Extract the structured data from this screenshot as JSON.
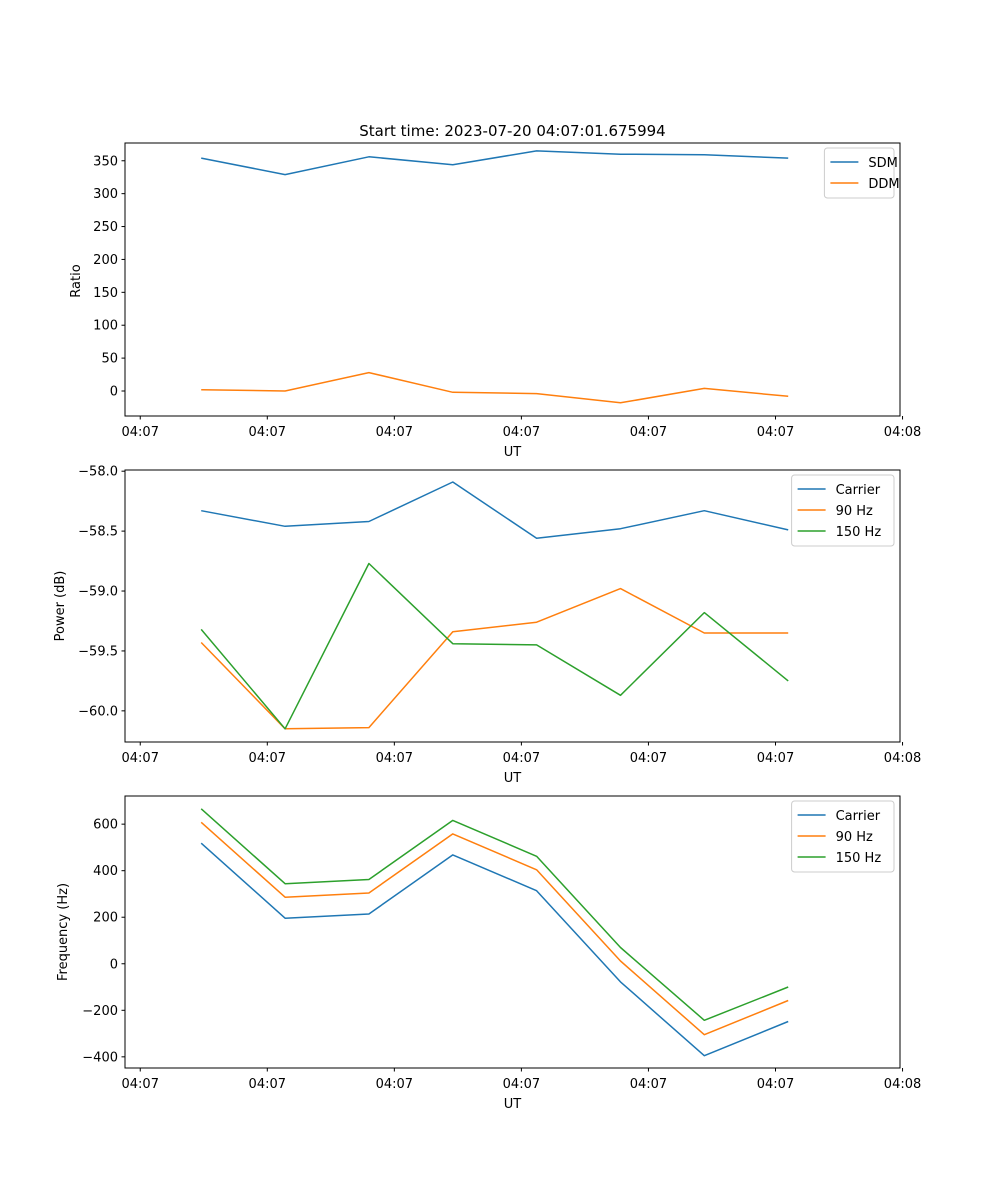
{
  "figure": {
    "title": "Start time: 2023-07-20 04:07:01.675994"
  },
  "chart_data": [
    {
      "type": "line",
      "xlabel": "UT",
      "ylabel": "Ratio",
      "x_tick_labels": [
        "04:07",
        "04:07",
        "04:07",
        "04:07",
        "04:07",
        "04:07",
        "04:08"
      ],
      "xlim": [
        -0.5,
        5.6
      ],
      "x_ticks": [
        -0.38,
        0.62,
        1.62,
        2.62,
        3.62,
        4.62,
        5.62
      ],
      "x": [
        0.1,
        0.76,
        1.42,
        2.08,
        2.74,
        3.4,
        4.06,
        4.72
      ],
      "ylim": [
        -38,
        377
      ],
      "y_ticks": [
        0,
        50,
        100,
        150,
        200,
        250,
        300,
        350
      ],
      "y_tick_labels": [
        "0",
        "50",
        "100",
        "150",
        "200",
        "250",
        "300",
        "350"
      ],
      "legend": "top-right",
      "series": [
        {
          "name": "SDM",
          "color": "#1f77b4",
          "values": [
            354,
            329,
            356,
            344,
            365,
            360,
            359,
            354
          ]
        },
        {
          "name": "DDM",
          "color": "#ff7f0e",
          "values": [
            2,
            0,
            28,
            -2,
            -4,
            -18,
            4,
            -8
          ]
        }
      ]
    },
    {
      "type": "line",
      "xlabel": "UT",
      "ylabel": "Power (dB)",
      "x_tick_labels": [
        "04:07",
        "04:07",
        "04:07",
        "04:07",
        "04:07",
        "04:07",
        "04:08"
      ],
      "xlim": [
        -0.5,
        5.6
      ],
      "x_ticks": [
        -0.38,
        0.62,
        1.62,
        2.62,
        3.62,
        4.62,
        5.62
      ],
      "x": [
        0.1,
        0.76,
        1.42,
        2.08,
        2.74,
        3.4,
        4.06,
        4.72
      ],
      "ylim": [
        -60.26,
        -57.99
      ],
      "y_ticks": [
        -60.0,
        -59.5,
        -59.0,
        -58.5,
        -58.0
      ],
      "y_tick_labels": [
        "−60.0",
        "−59.5",
        "−59.0",
        "−58.5",
        "−58.0"
      ],
      "legend": "top-right",
      "series": [
        {
          "name": "Carrier",
          "color": "#1f77b4",
          "values": [
            -58.33,
            -58.46,
            -58.42,
            -58.09,
            -58.56,
            -58.48,
            -58.33,
            -58.49
          ]
        },
        {
          "name": "90 Hz",
          "color": "#ff7f0e",
          "values": [
            -59.43,
            -60.15,
            -60.14,
            -59.34,
            -59.26,
            -58.98,
            -59.35,
            -59.35
          ]
        },
        {
          "name": "150 Hz",
          "color": "#2ca02c",
          "values": [
            -59.32,
            -60.15,
            -58.77,
            -59.44,
            -59.45,
            -59.87,
            -59.18,
            -59.75
          ]
        }
      ]
    },
    {
      "type": "line",
      "xlabel": "UT",
      "ylabel": "Frequency (Hz)",
      "x_tick_labels": [
        "04:07",
        "04:07",
        "04:07",
        "04:07",
        "04:07",
        "04:07",
        "04:08"
      ],
      "xlim": [
        -0.5,
        5.6
      ],
      "x_ticks": [
        -0.38,
        0.62,
        1.62,
        2.62,
        3.62,
        4.62,
        5.62
      ],
      "x": [
        0.1,
        0.76,
        1.42,
        2.08,
        2.74,
        3.4,
        4.06,
        4.72
      ],
      "ylim": [
        -448,
        721
      ],
      "y_ticks": [
        -400,
        -200,
        0,
        200,
        400,
        600
      ],
      "y_tick_labels": [
        "−400",
        "−200",
        "0",
        "200",
        "400",
        "600"
      ],
      "legend": "top-right",
      "series": [
        {
          "name": "Carrier",
          "color": "#1f77b4",
          "values": [
            518,
            196,
            214,
            468,
            314,
            -78,
            -395,
            -248
          ]
        },
        {
          "name": "90 Hz",
          "color": "#ff7f0e",
          "values": [
            608,
            286,
            304,
            558,
            404,
            12,
            -305,
            -158
          ]
        },
        {
          "name": "150 Hz",
          "color": "#2ca02c",
          "values": [
            666,
            344,
            362,
            616,
            462,
            70,
            -243,
            -100
          ]
        }
      ]
    }
  ]
}
